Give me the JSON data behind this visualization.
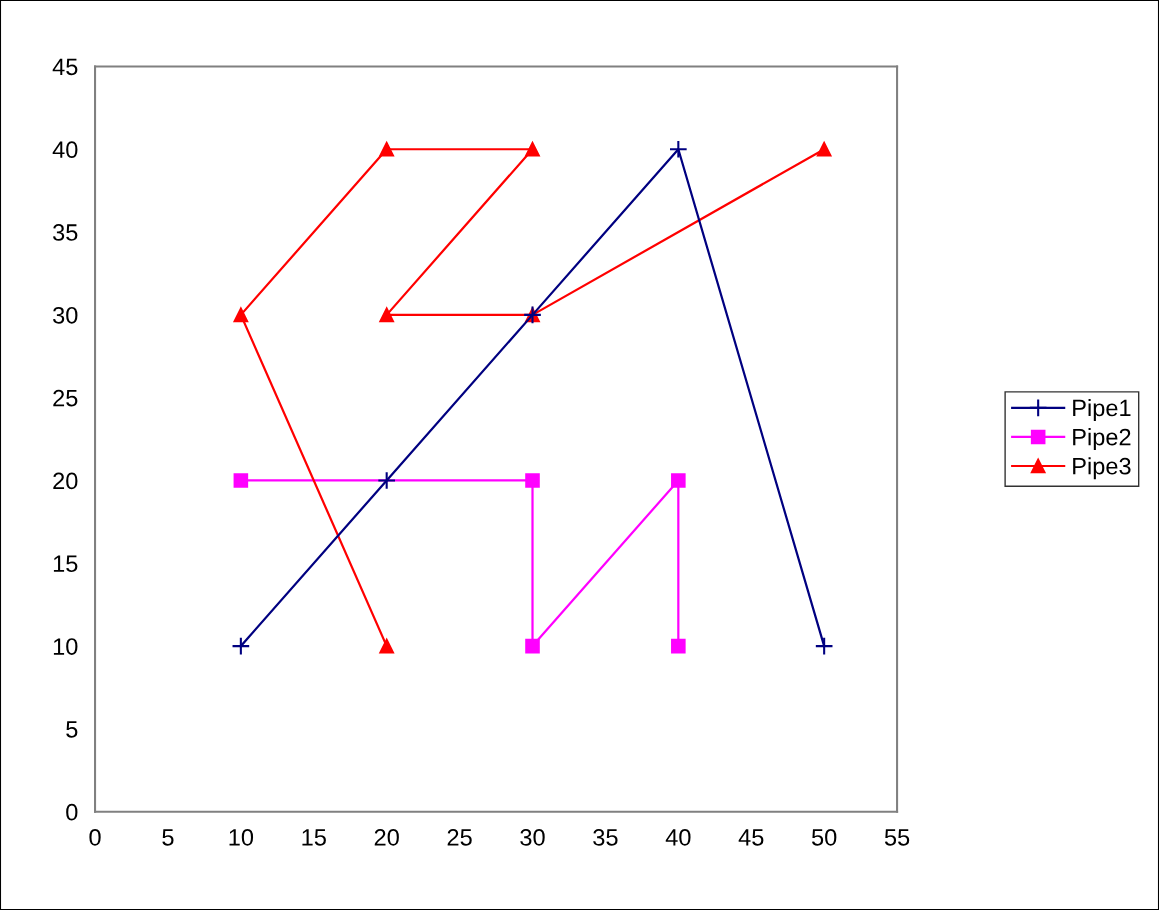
{
  "chart_data": {
    "type": "line",
    "xlim": [
      0,
      55
    ],
    "ylim": [
      0,
      45
    ],
    "xticks": [
      0,
      5,
      10,
      15,
      20,
      25,
      30,
      35,
      40,
      45,
      50,
      55
    ],
    "yticks": [
      0,
      5,
      10,
      15,
      20,
      25,
      30,
      35,
      40,
      45
    ],
    "grid": false,
    "legend": "right",
    "series": [
      {
        "name": "Pipe1",
        "color": "#000080",
        "marker": "cross",
        "x": [
          10,
          20,
          30,
          40,
          50
        ],
        "values": [
          10,
          20,
          30,
          40,
          10
        ]
      },
      {
        "name": "Pipe2",
        "color": "#ff00ff",
        "marker": "square",
        "x": [
          10,
          30,
          30,
          40,
          40
        ],
        "values": [
          20,
          20,
          10,
          20,
          10
        ]
      },
      {
        "name": "Pipe3",
        "color": "#ff0000",
        "marker": "triangle",
        "x": [
          20,
          10,
          20,
          30,
          20,
          30,
          50
        ],
        "values": [
          10,
          30,
          40,
          40,
          30,
          30,
          40
        ]
      }
    ]
  }
}
